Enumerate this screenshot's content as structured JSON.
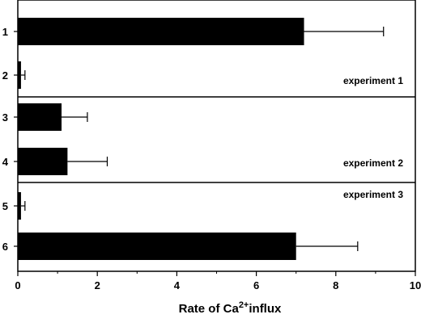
{
  "chart_data": {
    "type": "bar",
    "orientation": "horizontal",
    "categories": [
      "1",
      "2",
      "3",
      "4",
      "5",
      "6"
    ],
    "values": [
      7.2,
      0.08,
      1.1,
      1.25,
      0.08,
      7.0
    ],
    "errors": [
      2.0,
      0.1,
      0.65,
      1.0,
      0.1,
      1.55
    ],
    "xlim": [
      0,
      10
    ],
    "xticks": [
      "0",
      "2",
      "4",
      "6",
      "8",
      "10"
    ],
    "xlabel_prefix": "Rate of Ca",
    "xlabel_sup": "2+",
    "xlabel_suffix": "influx",
    "groups": [
      {
        "label": "experiment 1",
        "rows": [
          0,
          1
        ]
      },
      {
        "label": "experiment 2",
        "rows": [
          2,
          3
        ]
      },
      {
        "label": "experiment 3",
        "rows": [
          4,
          5
        ]
      }
    ],
    "bar_color": "#000000",
    "grid": false
  }
}
